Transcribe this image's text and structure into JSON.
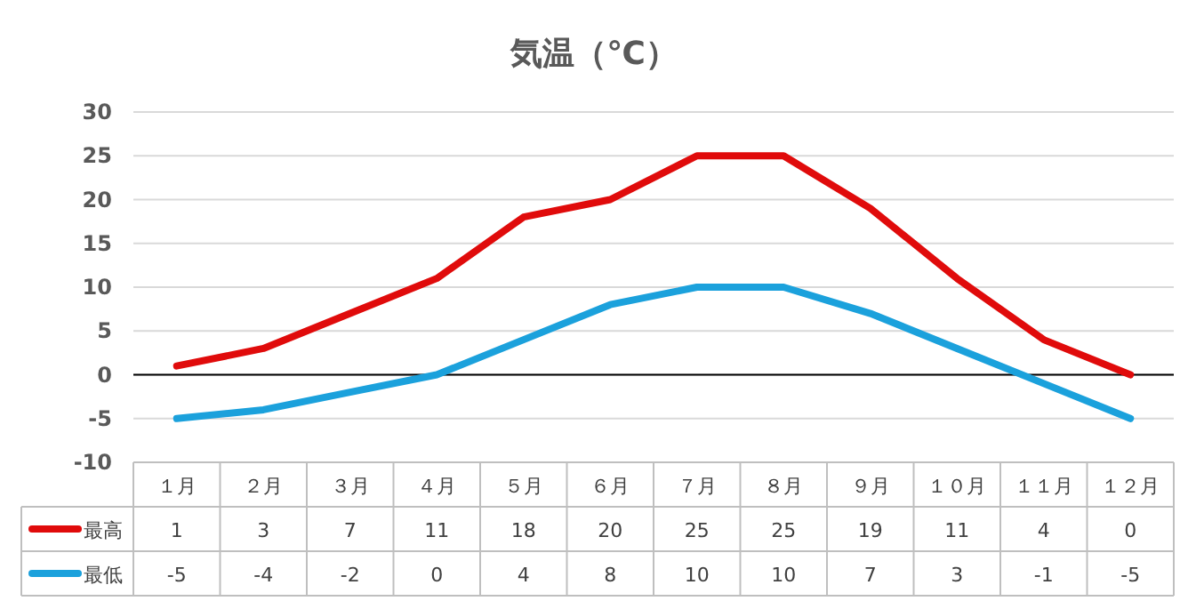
{
  "chart_data": {
    "type": "line",
    "title": "気温（℃）",
    "categories": [
      "１月",
      "２月",
      "３月",
      "４月",
      "５月",
      "６月",
      "７月",
      "８月",
      "９月",
      "１０月",
      "１１月",
      "１２月"
    ],
    "series": [
      {
        "name": "最高",
        "color": "#e00b0b",
        "values": [
          1,
          3,
          7,
          11,
          18,
          20,
          25,
          25,
          19,
          11,
          4,
          0
        ]
      },
      {
        "name": "最低",
        "color": "#1ba1dc",
        "values": [
          -5,
          -4,
          -2,
          0,
          4,
          8,
          10,
          10,
          7,
          3,
          -1,
          -5
        ]
      }
    ],
    "ylim": [
      -10,
      30
    ],
    "yticks": [
      -10,
      -5,
      0,
      5,
      10,
      15,
      20,
      25,
      30
    ],
    "grid": "y",
    "legend": "bottom",
    "data_labels": true,
    "marker": "none",
    "line_style": "solid",
    "ref_lines": [
      {
        "axis": "y",
        "value": 0,
        "color": "#000000"
      }
    ]
  }
}
